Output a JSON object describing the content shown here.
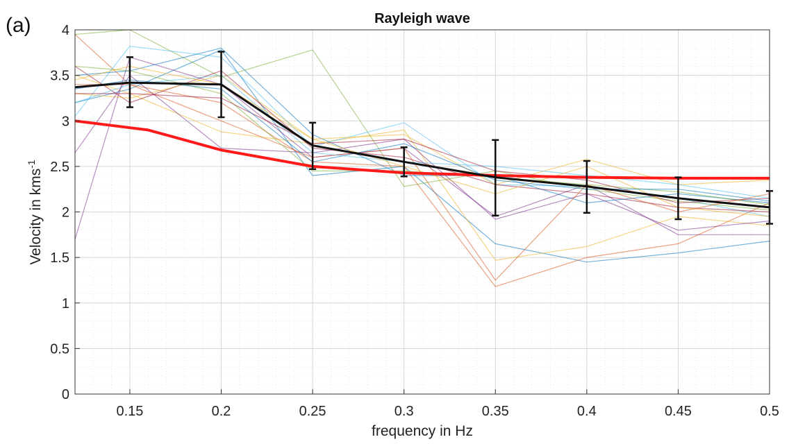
{
  "panel_label": "(a)",
  "chart_data": {
    "type": "line",
    "title": "Rayleigh wave",
    "xlabel": "frequency in Hz",
    "ylabel": "Velocity in kms",
    "ylabel_superscript": "-1",
    "xlim": [
      0.12,
      0.5
    ],
    "ylim": [
      0,
      4
    ],
    "xticks": [
      0.15,
      0.2,
      0.25,
      0.3,
      0.35,
      0.4,
      0.45,
      0.5
    ],
    "xtick_labels": [
      "0.15",
      "0.2",
      "0.25",
      "0.3",
      "0.35",
      "0.4",
      "0.45",
      "0.5"
    ],
    "yticks": [
      0,
      0.5,
      1,
      1.5,
      2,
      2.5,
      3,
      3.5,
      4
    ],
    "ytick_labels": [
      "0",
      "0.5",
      "1",
      "1.5",
      "2",
      "2.5",
      "3",
      "3.5",
      "4"
    ],
    "grid": true,
    "minor_grid": true,
    "x": [
      0.12,
      0.15,
      0.2,
      0.25,
      0.3,
      0.35,
      0.4,
      0.45,
      0.5
    ],
    "thin_series": [
      {
        "color": "#0072BD",
        "values": [
          3.2,
          3.35,
          3.78,
          2.4,
          2.5,
          1.65,
          1.45,
          1.55,
          1.68
        ]
      },
      {
        "color": "#D95319",
        "values": [
          3.95,
          3.4,
          3.2,
          2.55,
          2.5,
          1.18,
          1.5,
          1.65,
          2.1
        ]
      },
      {
        "color": "#EDB120",
        "values": [
          3.5,
          3.3,
          2.88,
          2.75,
          2.9,
          1.47,
          1.62,
          1.95,
          1.85
        ]
      },
      {
        "color": "#7E2F8E",
        "values": [
          1.7,
          3.7,
          3.4,
          2.6,
          2.7,
          1.95,
          2.3,
          1.75,
          1.75
        ]
      },
      {
        "color": "#77AC30",
        "values": [
          3.95,
          4.0,
          3.48,
          3.78,
          2.28,
          2.45,
          2.25,
          2.12,
          2.02
        ]
      },
      {
        "color": "#4DBEEE",
        "values": [
          3.05,
          3.82,
          3.7,
          2.72,
          2.98,
          2.3,
          2.28,
          2.15,
          1.95
        ]
      },
      {
        "color": "#A2142F",
        "values": [
          3.6,
          3.2,
          3.55,
          2.7,
          2.6,
          2.3,
          2.2,
          2.05,
          2.0
        ]
      },
      {
        "color": "#0072BD",
        "values": [
          3.5,
          3.55,
          3.8,
          2.85,
          2.4,
          2.4,
          2.1,
          2.2,
          2.1
        ]
      },
      {
        "color": "#D95319",
        "values": [
          3.4,
          3.4,
          3.0,
          2.6,
          2.7,
          1.25,
          2.3,
          2.0,
          2.2
        ]
      },
      {
        "color": "#EDB120",
        "values": [
          3.3,
          3.25,
          3.5,
          2.8,
          2.85,
          2.3,
          2.58,
          2.3,
          2.35
        ]
      },
      {
        "color": "#7E2F8E",
        "values": [
          2.65,
          3.5,
          2.7,
          2.65,
          2.8,
          1.92,
          2.2,
          1.8,
          1.9
        ]
      },
      {
        "color": "#77AC30",
        "values": [
          3.6,
          3.55,
          3.3,
          2.45,
          2.45,
          2.38,
          2.3,
          2.22,
          2.08
        ]
      },
      {
        "color": "#4DBEEE",
        "values": [
          3.2,
          3.4,
          3.5,
          2.65,
          2.55,
          2.5,
          2.4,
          2.3,
          2.15
        ]
      },
      {
        "color": "#A2142F",
        "values": [
          3.3,
          3.3,
          3.25,
          2.75,
          2.8,
          2.45,
          2.35,
          2.1,
          2.15
        ]
      },
      {
        "color": "#EDB120",
        "values": [
          3.45,
          3.6,
          3.4,
          2.8,
          2.5,
          2.2,
          2.5,
          2.05,
          1.95
        ]
      },
      {
        "color": "#0072BD",
        "values": [
          3.35,
          3.45,
          3.35,
          2.55,
          2.75,
          2.35,
          2.25,
          2.25,
          2.12
        ]
      }
    ],
    "mean_series": {
      "color": "#111111",
      "values": [
        3.37,
        3.42,
        3.4,
        2.73,
        2.55,
        2.38,
        2.28,
        2.15,
        2.05
      ]
    },
    "error_bars": [
      {
        "x": 0.15,
        "low": 3.15,
        "high": 3.7
      },
      {
        "x": 0.2,
        "low": 3.04,
        "high": 3.76
      },
      {
        "x": 0.25,
        "low": 2.47,
        "high": 2.98
      },
      {
        "x": 0.3,
        "low": 2.39,
        "high": 2.71
      },
      {
        "x": 0.35,
        "low": 1.96,
        "high": 2.79
      },
      {
        "x": 0.4,
        "low": 1.99,
        "high": 2.56
      },
      {
        "x": 0.45,
        "low": 1.92,
        "high": 2.38
      },
      {
        "x": 0.5,
        "low": 1.87,
        "high": 2.23
      }
    ],
    "reference_series": {
      "color": "#FF1A1A",
      "x": [
        0.12,
        0.14,
        0.16,
        0.2,
        0.25,
        0.3,
        0.35,
        0.4,
        0.45,
        0.5
      ],
      "values": [
        3.0,
        2.95,
        2.9,
        2.68,
        2.5,
        2.43,
        2.4,
        2.38,
        2.37,
        2.37
      ]
    }
  }
}
